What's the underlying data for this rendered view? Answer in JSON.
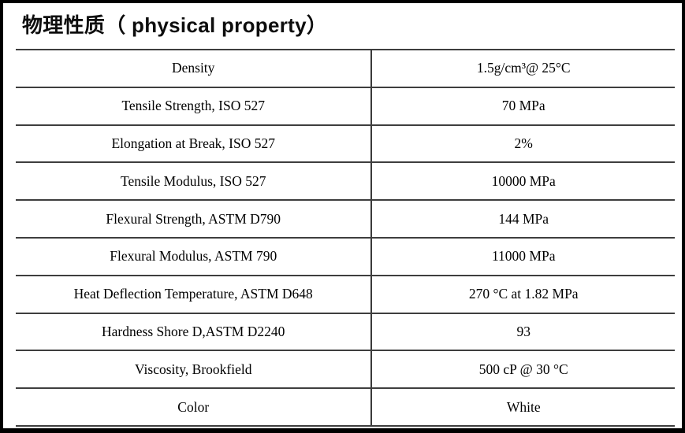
{
  "title": "物理性质（ physical property）",
  "table": {
    "rows": [
      {
        "property": "Density",
        "value": "1.5g/cm³@ 25°C"
      },
      {
        "property": "Tensile Strength, ISO 527",
        "value": "70 MPa"
      },
      {
        "property": "Elongation at Break, ISO 527",
        "value": "2%"
      },
      {
        "property": "Tensile Modulus, ISO 527",
        "value": "10000 MPa"
      },
      {
        "property": "Flexural Strength, ASTM D790",
        "value": "144 MPa"
      },
      {
        "property": "Flexural Modulus, ASTM 790",
        "value": "11000 MPa"
      },
      {
        "property": "Heat Deflection Temperature, ASTM D648",
        "value": "270 °C at 1.82 MPa"
      },
      {
        "property": "Hardness Shore D,ASTM D2240",
        "value": "93"
      },
      {
        "property": "Viscosity, Brookfield",
        "value": "500 cP @ 30 °C"
      },
      {
        "property": "Color",
        "value": "White"
      }
    ]
  },
  "colors": {
    "frame_border": "#000000",
    "grid_line": "#3e3e3e",
    "text": "#000000",
    "background": "#ffffff"
  }
}
